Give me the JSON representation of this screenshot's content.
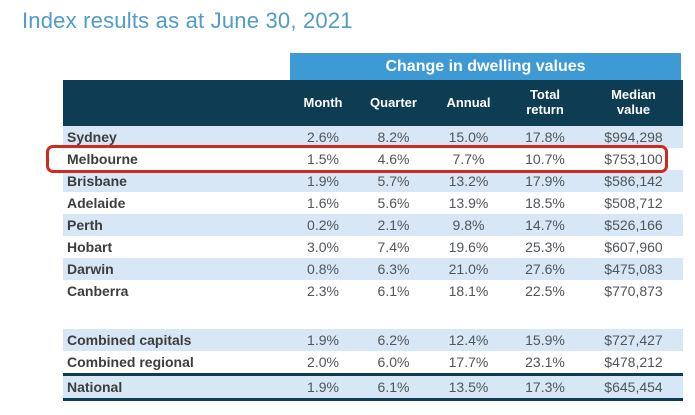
{
  "title": "Index results as at June 30, 2021",
  "chart_data": {
    "type": "table",
    "title": "Index results as at June 30, 2021",
    "group_header": "Change in dwelling values",
    "columns": [
      "Month",
      "Quarter",
      "Annual",
      "Total\nreturn",
      "Median\nvalue"
    ],
    "rows": [
      {
        "label": "Sydney",
        "values": [
          "2.6%",
          "8.2%",
          "15.0%",
          "17.8%",
          "$994,298"
        ]
      },
      {
        "label": "Melbourne",
        "values": [
          "1.5%",
          "4.6%",
          "7.7%",
          "10.7%",
          "$753,100"
        ]
      },
      {
        "label": "Brisbane",
        "values": [
          "1.9%",
          "5.7%",
          "13.2%",
          "17.9%",
          "$586,142"
        ]
      },
      {
        "label": "Adelaide",
        "values": [
          "1.6%",
          "5.6%",
          "13.9%",
          "18.5%",
          "$508,712"
        ]
      },
      {
        "label": "Perth",
        "values": [
          "0.2%",
          "2.1%",
          "9.8%",
          "14.7%",
          "$526,166"
        ]
      },
      {
        "label": "Hobart",
        "values": [
          "3.0%",
          "7.4%",
          "19.6%",
          "25.3%",
          "$607,960"
        ]
      },
      {
        "label": "Darwin",
        "values": [
          "0.8%",
          "6.3%",
          "21.0%",
          "27.6%",
          "$475,083"
        ]
      },
      {
        "label": "Canberra",
        "values": [
          "2.3%",
          "6.1%",
          "18.1%",
          "22.5%",
          "$770,873"
        ]
      }
    ],
    "summary_rows": [
      {
        "label": "Combined capitals",
        "values": [
          "1.9%",
          "6.2%",
          "12.4%",
          "15.9%",
          "$727,427"
        ]
      },
      {
        "label": "Combined regional",
        "values": [
          "2.0%",
          "6.0%",
          "17.7%",
          "23.1%",
          "$478,212"
        ]
      },
      {
        "label": "National",
        "values": [
          "1.9%",
          "6.1%",
          "13.5%",
          "17.3%",
          "$645,454"
        ]
      }
    ],
    "highlighted_row": "Melbourne"
  },
  "colors": {
    "title_blue": "#4f9cc7",
    "band_blue": "#3e9ad5",
    "header_dark": "#0d3c53",
    "row_shade_blue": "#d7e7f5",
    "highlight_red": "#ce2a20"
  }
}
